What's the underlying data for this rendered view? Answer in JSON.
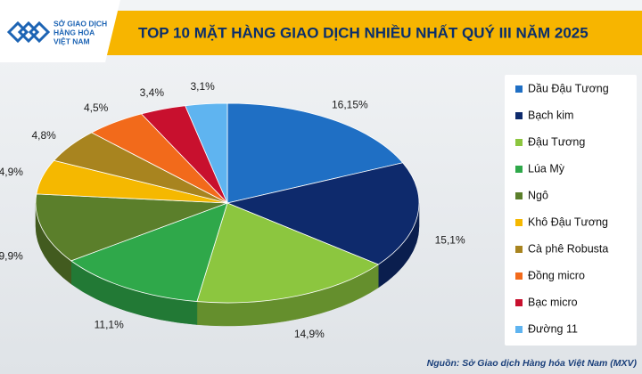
{
  "header": {
    "logo_lines": [
      "SỞ GIAO DỊCH",
      "HÀNG HÓA",
      "VIỆT NAM"
    ]
  },
  "chart_data": {
    "type": "pie3d",
    "title": "TOP 10 MẶT HÀNG GIAO DỊCH NHIỀU NHẤT QUÝ III NĂM 2025",
    "categories": [
      "Dầu Đậu Tương",
      "Bạch kim",
      "Đậu Tương",
      "Lúa Mỳ",
      "Ngô",
      "Khô Đậu Tương",
      "Cà phê Robusta",
      "Đồng micro",
      "Bạc micro",
      "Đường 11"
    ],
    "values": [
      16.15,
      15.1,
      14.9,
      11.1,
      9.9,
      4.9,
      4.8,
      4.5,
      3.4,
      3.1
    ],
    "value_labels": [
      "16,15%",
      "15,1%",
      "14,9%",
      "11,1%",
      "9,9%",
      "4,9%",
      "4,8%",
      "4,5%",
      "3,4%",
      "3,1%"
    ],
    "colors": [
      "#1f6fc4",
      "#0e2a6c",
      "#8cc63f",
      "#2fa84a",
      "#5b7f2b",
      "#f5b800",
      "#a8841f",
      "#f26a1b",
      "#c8102e",
      "#5fb4f0"
    ],
    "legend": "right",
    "source": "Nguồn: Sở Giao dịch Hàng hóa Việt Nam (MXV)"
  }
}
